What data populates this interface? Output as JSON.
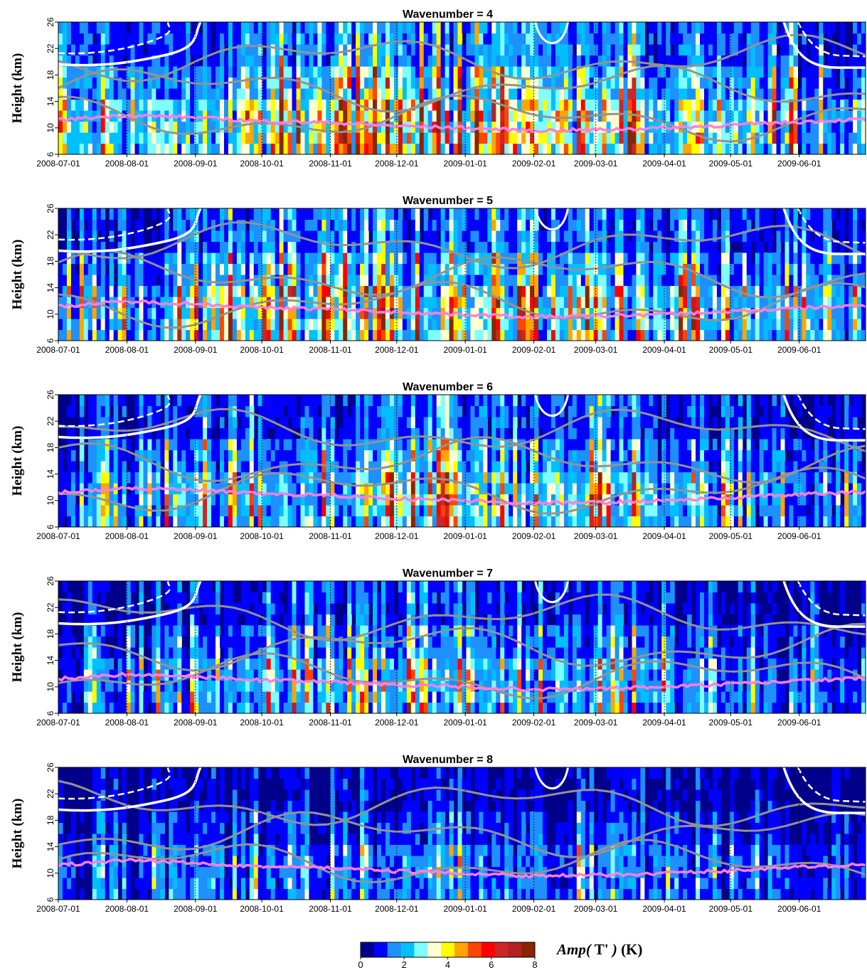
{
  "chart_data": {
    "type": "heatmap",
    "ylabel": "Height (km)",
    "ylim": [
      6,
      26
    ],
    "y_ticks": [
      "6",
      "10",
      "14",
      "18",
      "22",
      "26"
    ],
    "x_ticks": [
      "2008-07-01",
      "2008-08-01",
      "2008-09-01",
      "2008-10-01",
      "2008-11-01",
      "2008-12-01",
      "2009-01-01",
      "2009-02-01",
      "2009-03-01",
      "2009-04-01",
      "2009-05-01",
      "2009-06-01"
    ],
    "xlim": [
      "2008-07-01",
      "2009-06-30"
    ],
    "panels": [
      {
        "title": "Wavenumber = 4",
        "intensity": 1.0
      },
      {
        "title": "Wavenumber = 5",
        "intensity": 0.9
      },
      {
        "title": "Wavenumber = 6",
        "intensity": 0.74
      },
      {
        "title": "Wavenumber = 7",
        "intensity": 0.6
      },
      {
        "title": "Wavenumber = 8",
        "intensity": 0.42
      }
    ],
    "colorbar": {
      "label_main": "Amp(",
      "label_var": "T'",
      "label_close": ")",
      "label_unit": "(K)",
      "ticks": [
        "0",
        "2",
        "4",
        "6",
        "8"
      ],
      "range": [
        0,
        8
      ],
      "colors": [
        "#00008b",
        "#0000ff",
        "#1e90ff",
        "#00bfff",
        "#7fffff",
        "#ffffd0",
        "#ffff00",
        "#ffa500",
        "#ff4500",
        "#ff0000",
        "#cd2626",
        "#b22222",
        "#8b2500"
      ]
    },
    "tropopause_height_km": [
      11.2,
      11.9,
      11.6,
      11.0,
      10.8,
      10.3,
      10.0,
      9.6,
      9.7,
      10.0,
      10.4,
      10.9,
      11.3
    ],
    "overlay_colors": {
      "tropopause": "#ff7fde",
      "white_contour": "#ffffff",
      "gray_contour": "#939393"
    }
  }
}
